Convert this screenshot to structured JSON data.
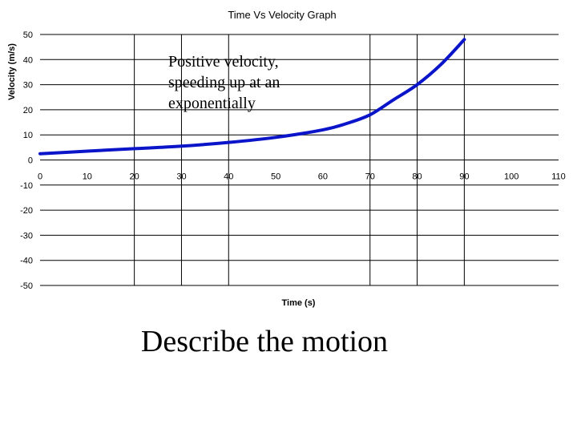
{
  "chart_data": {
    "type": "line",
    "title": "Time Vs Velocity Graph",
    "xlabel": "Time (s)",
    "ylabel": "Velocity (m/s)",
    "xlim": [
      0,
      110
    ],
    "ylim": [
      -50,
      50
    ],
    "x_ticks": [
      "0",
      "10",
      "20",
      "30",
      "40",
      "50",
      "60",
      "70",
      "80",
      "90",
      "100",
      "110"
    ],
    "y_ticks": [
      "50",
      "40",
      "30",
      "20",
      "10",
      "0",
      "-10",
      "-20",
      "-30",
      "-40",
      "-50"
    ],
    "vertical_gridlines_at": [
      20,
      30,
      40,
      70,
      80,
      90
    ],
    "horizontal_gridlines": true,
    "series": [
      {
        "color": "#0a14c8",
        "x": [
          0,
          10,
          20,
          30,
          40,
          50,
          60,
          65,
          70,
          75,
          80,
          85,
          90
        ],
        "y": [
          2.5,
          3.5,
          4.5,
          5.5,
          7,
          9,
          12,
          14.5,
          18,
          24,
          30,
          38,
          48
        ]
      }
    ]
  },
  "annotation": "Positive velocity, speeding up at an exponentially",
  "prompt": "Describe the motion"
}
